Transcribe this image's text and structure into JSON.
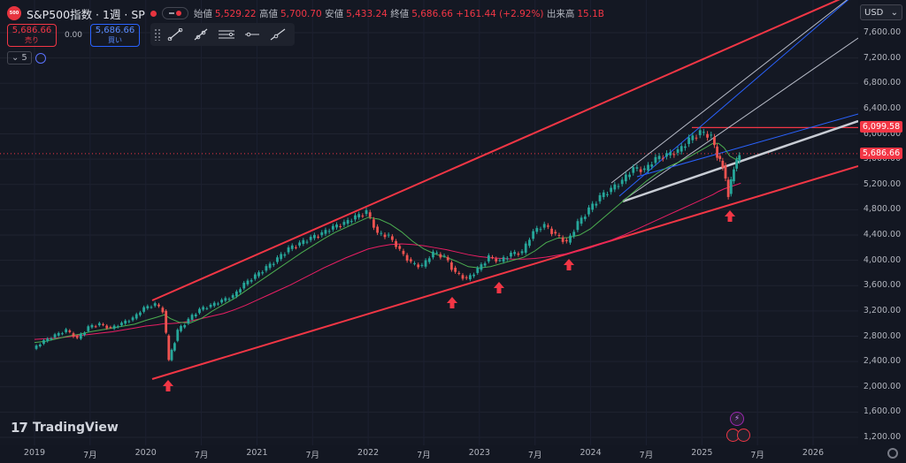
{
  "header": {
    "symbol_label": "S&P500指数 · 1週 · SP",
    "logo_text": "500",
    "ohlc": {
      "open_label": "始値",
      "open": "5,529.22",
      "high_label": "高値",
      "high": "5,700.70",
      "low_label": "安値",
      "low": "5,433.24",
      "close_label": "終値",
      "close": "5,686.66",
      "change": "+161.44 (+2.92%)",
      "volume_label": "出来高",
      "volume": "15.1B"
    }
  },
  "trade": {
    "sell_price": "5,686.66",
    "sell_label": "売り",
    "spread": "0.00",
    "buy_price": "5,686.66",
    "buy_label": "買い"
  },
  "indicator": {
    "count": "5"
  },
  "currency": {
    "label": "USD"
  },
  "brand": {
    "name": "TradingView"
  },
  "y_axis": {
    "ticks": [
      "7,600.00",
      "7,200.00",
      "6,800.00",
      "6,400.00",
      "6,000.00",
      "5,600.00",
      "5,200.00",
      "4,800.00",
      "4,400.00",
      "4,000.00",
      "3,600.00",
      "3,200.00",
      "2,800.00",
      "2,400.00",
      "2,000.00",
      "1,600.00",
      "1,200.00"
    ],
    "tick_values": [
      7600,
      7200,
      6800,
      6400,
      6000,
      5600,
      5200,
      4800,
      4400,
      4000,
      3600,
      3200,
      2800,
      2400,
      2000,
      1600,
      1200
    ],
    "resistance_label": "6,099.58",
    "resistance_value": 6099.58,
    "current_label": "5,686.66",
    "current_value": 5686.66
  },
  "x_axis": {
    "ticks": [
      "2019",
      "7月",
      "2020",
      "7月",
      "2021",
      "7月",
      "2022",
      "7月",
      "2023",
      "7月",
      "2024",
      "7月",
      "2025",
      "7月",
      "2026"
    ]
  },
  "colors": {
    "background": "#131722",
    "up": "#26a69a",
    "down": "#ef5350",
    "channel": "#f23645",
    "ma_short": "#4caf50",
    "ma_long": "#e91e63",
    "trend_white": "#d1d4dc",
    "trend_blue": "#2962ff"
  },
  "chart_data": {
    "type": "candlestick",
    "interval": "weekly",
    "ylim": [
      1200,
      7600
    ],
    "xlim": [
      2019.0,
      2026.0
    ],
    "x": [
      2019.0,
      2019.1,
      2019.2,
      2019.3,
      2019.4,
      2019.5,
      2019.6,
      2019.7,
      2019.8,
      2019.9,
      2020.0,
      2020.1,
      2020.17,
      2020.22,
      2020.3,
      2020.4,
      2020.5,
      2020.6,
      2020.7,
      2020.8,
      2020.9,
      2021.0,
      2021.1,
      2021.2,
      2021.3,
      2021.4,
      2021.5,
      2021.6,
      2021.7,
      2021.8,
      2021.9,
      2022.0,
      2022.1,
      2022.2,
      2022.3,
      2022.4,
      2022.5,
      2022.6,
      2022.7,
      2022.8,
      2022.9,
      2023.0,
      2023.1,
      2023.2,
      2023.3,
      2023.4,
      2023.5,
      2023.6,
      2023.7,
      2023.8,
      2023.9,
      2024.0,
      2024.1,
      2024.2,
      2024.3,
      2024.4,
      2024.5,
      2024.6,
      2024.7,
      2024.8,
      2024.9,
      2025.0,
      2025.1,
      2025.15,
      2025.2,
      2025.25,
      2025.3,
      2025.35
    ],
    "close": [
      2600,
      2720,
      2810,
      2890,
      2760,
      2940,
      2990,
      2920,
      3000,
      3080,
      3240,
      3300,
      3200,
      2420,
      2880,
      3060,
      3220,
      3280,
      3360,
      3430,
      3620,
      3750,
      3880,
      4020,
      4180,
      4260,
      4350,
      4420,
      4520,
      4580,
      4680,
      4760,
      4420,
      4380,
      4150,
      3950,
      3900,
      4120,
      4050,
      3800,
      3700,
      3850,
      4050,
      3980,
      4100,
      4120,
      4450,
      4550,
      4400,
      4280,
      4580,
      4800,
      5000,
      5120,
      5250,
      5450,
      5420,
      5600,
      5660,
      5720,
      5900,
      6020,
      5950,
      5650,
      5500,
      5050,
      5450,
      5686.66
    ],
    "ma_short": [
      2700,
      2720,
      2760,
      2800,
      2830,
      2870,
      2900,
      2930,
      2960,
      2990,
      3050,
      3100,
      3140,
      3080,
      3020,
      3010,
      3080,
      3200,
      3300,
      3400,
      3520,
      3640,
      3760,
      3880,
      4000,
      4120,
      4230,
      4340,
      4440,
      4520,
      4600,
      4680,
      4650,
      4570,
      4450,
      4300,
      4180,
      4100,
      4050,
      3980,
      3900,
      3880,
      3900,
      3950,
      4000,
      4050,
      4150,
      4280,
      4350,
      4360,
      4400,
      4500,
      4650,
      4800,
      4950,
      5100,
      5250,
      5380,
      5480,
      5560,
      5650,
      5750,
      5850,
      5850,
      5780,
      5650,
      5600,
      5620
    ],
    "ma_long": [
      2750,
      2760,
      2770,
      2790,
      2810,
      2830,
      2850,
      2870,
      2900,
      2930,
      2960,
      2980,
      3000,
      3000,
      3010,
      3040,
      3080,
      3120,
      3160,
      3220,
      3290,
      3370,
      3450,
      3530,
      3610,
      3700,
      3790,
      3880,
      3960,
      4040,
      4110,
      4180,
      4220,
      4250,
      4260,
      4250,
      4230,
      4200,
      4170,
      4130,
      4090,
      4060,
      4040,
      4030,
      4020,
      4020,
      4030,
      4050,
      4080,
      4110,
      4150,
      4200,
      4260,
      4330,
      4400,
      4480,
      4560,
      4640,
      4720,
      4800,
      4880,
      4960,
      5040,
      5090,
      5130,
      5160,
      5190,
      5220
    ]
  }
}
